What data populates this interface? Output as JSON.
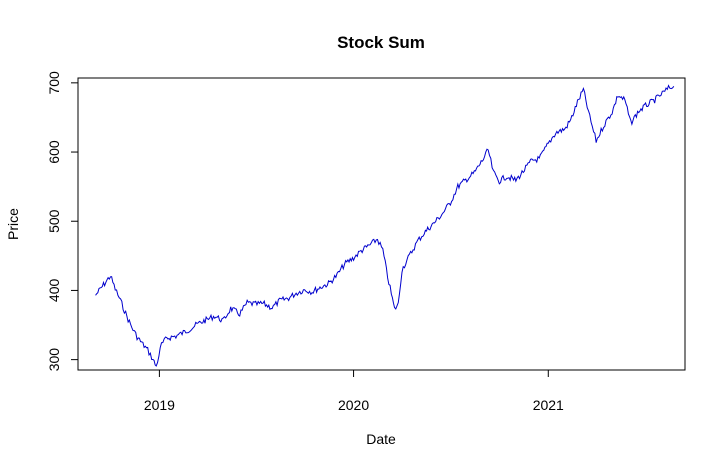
{
  "chart_data": {
    "type": "line",
    "title": "Stock Sum",
    "xlabel": "Date",
    "ylabel": "Price",
    "xlim": [
      "2018-08-01",
      "2021-09-15"
    ],
    "ylim": [
      285,
      707
    ],
    "x_ticks": [
      {
        "label": "2019",
        "date": "2019-01-01"
      },
      {
        "label": "2020",
        "date": "2020-01-01"
      },
      {
        "label": "2021",
        "date": "2021-01-01"
      }
    ],
    "y_ticks": [
      300,
      400,
      500,
      600,
      700
    ],
    "grid": false,
    "line_color": "#0000CD",
    "series": [
      {
        "x": [
          "2018-09-03",
          "2018-09-20",
          "2018-10-01",
          "2018-10-10",
          "2018-10-20",
          "2018-11-01",
          "2018-11-10",
          "2018-11-20",
          "2018-12-01",
          "2018-12-10",
          "2018-12-20",
          "2018-12-26",
          "2019-01-05",
          "2019-01-15",
          "2019-02-01",
          "2019-02-15",
          "2019-03-01",
          "2019-03-15",
          "2019-04-01",
          "2019-04-15",
          "2019-05-01",
          "2019-05-15",
          "2019-06-01",
          "2019-06-15",
          "2019-07-01",
          "2019-07-15",
          "2019-08-01",
          "2019-08-15",
          "2019-09-01",
          "2019-09-15",
          "2019-10-01",
          "2019-10-15",
          "2019-11-01",
          "2019-11-15",
          "2019-12-01",
          "2019-12-15",
          "2020-01-01",
          "2020-01-15",
          "2020-02-01",
          "2020-02-15",
          "2020-02-25",
          "2020-03-05",
          "2020-03-12",
          "2020-03-18",
          "2020-03-25",
          "2020-04-01",
          "2020-04-15",
          "2020-05-01",
          "2020-05-15",
          "2020-06-01",
          "2020-06-15",
          "2020-07-01",
          "2020-07-15",
          "2020-08-01",
          "2020-08-15",
          "2020-09-01",
          "2020-09-10",
          "2020-09-20",
          "2020-10-01",
          "2020-10-15",
          "2020-11-01",
          "2020-11-15",
          "2020-12-01",
          "2020-12-15",
          "2021-01-01",
          "2021-01-15",
          "2021-02-01",
          "2021-02-12",
          "2021-02-25",
          "2021-03-08",
          "2021-03-20",
          "2021-04-01",
          "2021-04-15",
          "2021-05-01",
          "2021-05-12",
          "2021-05-25",
          "2021-06-05",
          "2021-06-20",
          "2021-07-05",
          "2021-07-20",
          "2021-08-01",
          "2021-08-15",
          "2021-08-25"
        ],
        "y": [
          393,
          410,
          421,
          402,
          385,
          362,
          347,
          333,
          322,
          314,
          300,
          290,
          322,
          331,
          334,
          339,
          345,
          352,
          358,
          363,
          356,
          374,
          366,
          382,
          380,
          381,
          375,
          385,
          389,
          396,
          401,
          398,
          405,
          410,
          422,
          438,
          447,
          457,
          466,
          474,
          458,
          420,
          395,
          373,
          380,
          430,
          450,
          472,
          485,
          498,
          510,
          527,
          550,
          561,
          570,
          590,
          603,
          570,
          558,
          565,
          559,
          572,
          588,
          590,
          612,
          628,
          633,
          646,
          672,
          690,
          650,
          616,
          638,
          658,
          682,
          675,
          642,
          659,
          668,
          675,
          683,
          692,
          695
        ]
      }
    ]
  }
}
